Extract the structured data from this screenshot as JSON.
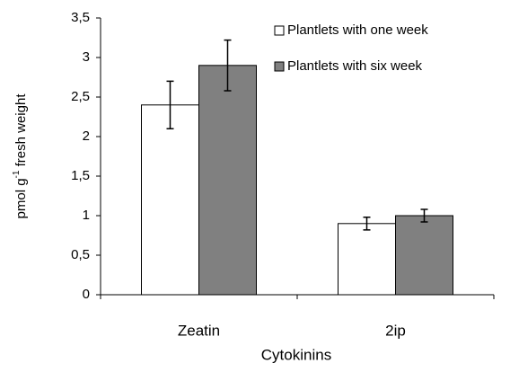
{
  "chart_data": {
    "type": "bar",
    "categories": [
      "Zeatin",
      "2ip"
    ],
    "series": [
      {
        "name": "Plantlets with one week",
        "color": "#ffffff",
        "values": [
          2.4,
          0.9
        ],
        "errors": [
          0.3,
          0.08
        ]
      },
      {
        "name": "Plantlets with six week",
        "color": "#808080",
        "values": [
          2.9,
          1.0
        ],
        "errors": [
          0.32,
          0.08
        ]
      }
    ],
    "x_label": "Cytokinins",
    "y_label": [
      "pmol g",
      "-1",
      " fresh weight"
    ],
    "ylim": [
      0,
      3.5
    ],
    "yticks": [
      0,
      {
        "value": 0.5,
        "label": "0,5"
      },
      1,
      {
        "value": 1.5,
        "label": "1,5"
      },
      2,
      {
        "value": 2.5,
        "label": "2,5"
      },
      3,
      {
        "value": 3.5,
        "label": "3,5"
      }
    ],
    "grid": false,
    "legend": "top-right"
  }
}
